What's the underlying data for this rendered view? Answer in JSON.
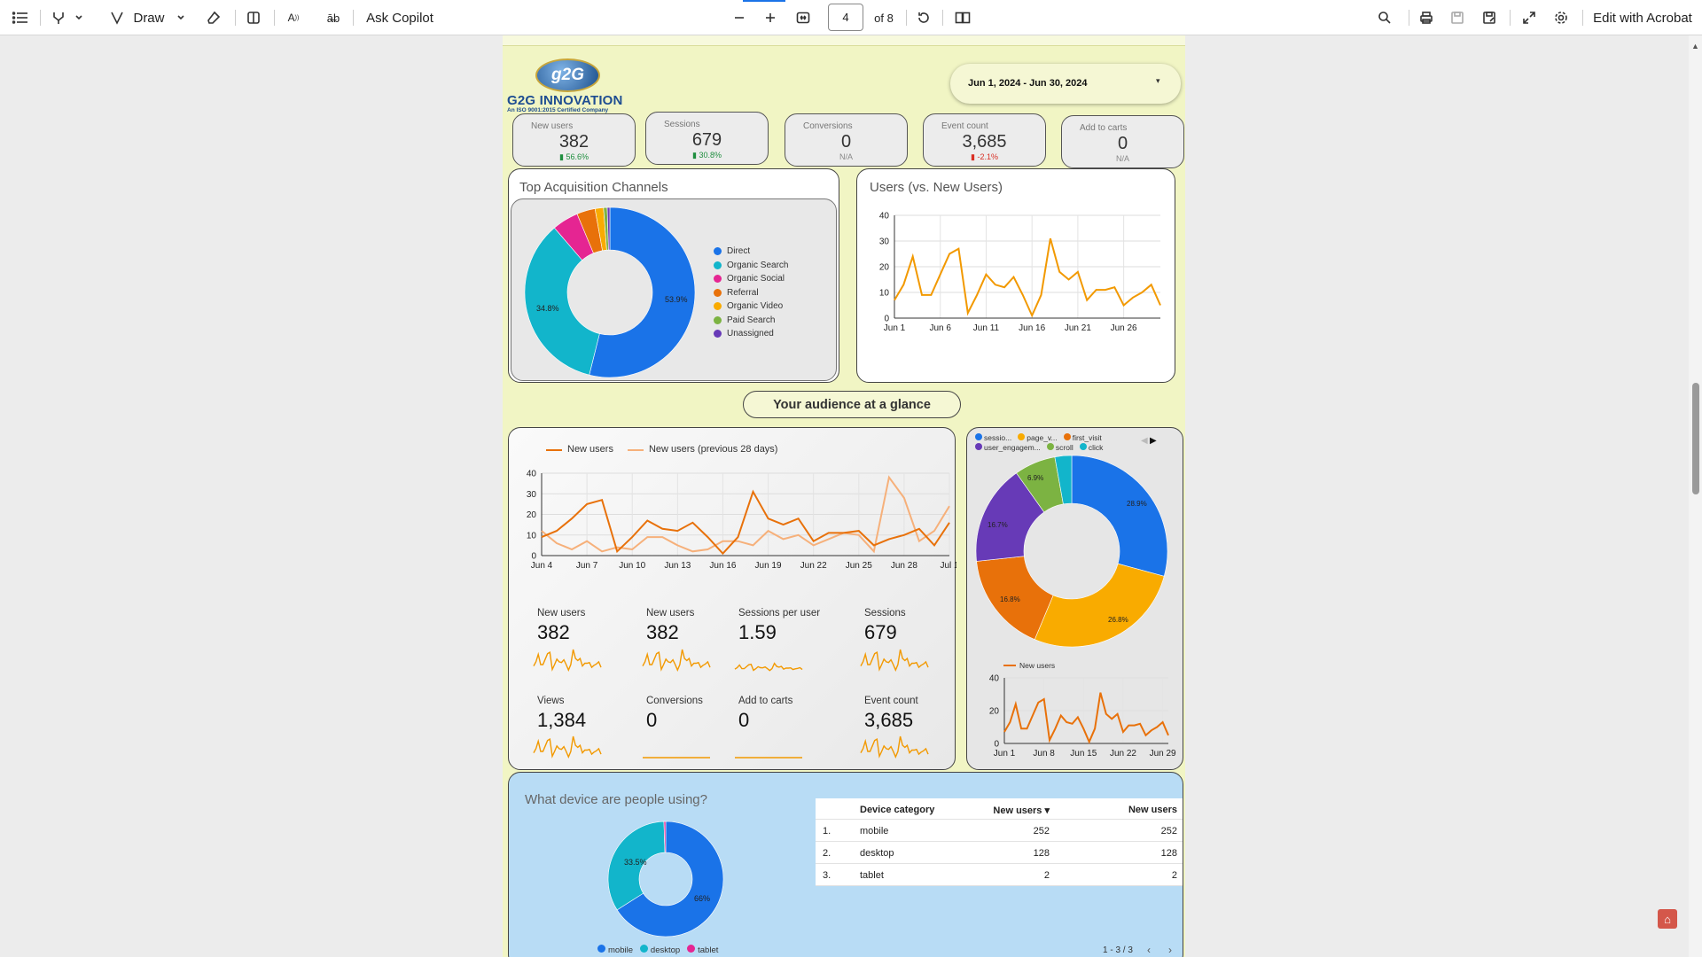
{
  "toolbar": {
    "draw_label": "Draw",
    "ask_copilot": "Ask Copilot",
    "page_number": "4",
    "page_of": "of 8",
    "edit_acrobat": "Edit with Acrobat"
  },
  "report": {
    "logo_text": "g2G",
    "company_name": "G2G INNOVATION",
    "company_tagline": "An ISO 9001:2015 Certified Company",
    "date_range": "Jun 1, 2024 - Jun 30, 2024",
    "kpis": [
      {
        "label": "New users",
        "value": "382",
        "delta": "56.6%"
      },
      {
        "label": "Sessions",
        "value": "679",
        "delta": "30.8%"
      },
      {
        "label": "Conversions",
        "value": "0",
        "delta": "N/A"
      },
      {
        "label": "Event count",
        "value": "3,685",
        "delta": "-2.1%"
      },
      {
        "label": "Add to carts",
        "value": "0",
        "delta": "N/A"
      }
    ],
    "acquisition_title": "Top Acquisition Channels",
    "acquisition_legend": [
      "Direct",
      "Organic Search",
      "Organic Social",
      "Referral",
      "Organic Video",
      "Paid Search",
      "Unassigned"
    ],
    "acquisition_slice_labels": [
      "53.9%",
      "34.8%"
    ],
    "users_title": "Users (vs. New Users)",
    "audience_title": "Your audience at a glance",
    "newusers_legend": [
      "New users",
      "New users (previous 28 days)"
    ],
    "metrics": [
      {
        "label": "New users",
        "value": "382"
      },
      {
        "label": "New users",
        "value": "382"
      },
      {
        "label": "Sessions per user",
        "value": "1.59"
      },
      {
        "label": "Sessions",
        "value": "679"
      },
      {
        "label": "Views",
        "value": "1,384"
      },
      {
        "label": "Conversions",
        "value": "0"
      },
      {
        "label": "Add to carts",
        "value": "0"
      },
      {
        "label": "Event count",
        "value": "3,685"
      }
    ],
    "events_legend": [
      "sessio...",
      "page_v...",
      "first_visit",
      "user_engagem...",
      "scroll",
      "click"
    ],
    "events_slice_labels": [
      "28.9%",
      "26.8%",
      "16.8%",
      "16.7%",
      "6.9%"
    ],
    "small_chart_legend": "New users",
    "device_title": "What device are people using?",
    "device_slice_labels": [
      "33.5%",
      "66%"
    ],
    "device_legend": [
      "mobile",
      "desktop",
      "tablet"
    ],
    "device_table": {
      "headers": [
        "Device category",
        "New users ▾",
        "New users"
      ],
      "rows": [
        {
          "n": "1.",
          "cat": "mobile",
          "a": "252",
          "b": "252"
        },
        {
          "n": "2.",
          "cat": "desktop",
          "a": "128",
          "b": "128"
        },
        {
          "n": "3.",
          "cat": "tablet",
          "a": "2",
          "b": "2"
        }
      ],
      "pagination": "1 - 3 / 3"
    }
  },
  "colors": {
    "direct": "#1a73e8",
    "organic_search": "#12b5cb",
    "organic_social": "#e52592",
    "referral": "#e8710a",
    "organic_video": "#f9ab00",
    "paid_search": "#7cb342",
    "unassigned": "#673ab7",
    "line_orange": "#f29900",
    "line_dark_orange": "#e8710a",
    "line_light": "#f6b07a"
  },
  "chart_data": [
    {
      "type": "pie",
      "title": "Top Acquisition Channels",
      "labels": [
        "Direct",
        "Organic Search",
        "Organic Social",
        "Referral",
        "Organic Video",
        "Paid Search",
        "Unassigned"
      ],
      "values": [
        53.9,
        34.8,
        5.0,
        3.5,
        1.6,
        0.7,
        0.5
      ]
    },
    {
      "type": "line",
      "title": "Users (vs. New Users)",
      "x_ticks": [
        "Jun 1",
        "Jun 6",
        "Jun 11",
        "Jun 16",
        "Jun 21",
        "Jun 26"
      ],
      "y_ticks": [
        "0",
        "10",
        "20",
        "30",
        "40"
      ],
      "ylim": [
        0,
        40
      ],
      "series": [
        {
          "values": [
            7,
            13,
            24,
            9,
            9,
            17,
            25,
            27,
            2,
            9,
            17,
            13,
            12,
            16,
            9,
            1,
            9,
            31,
            18,
            15,
            18,
            7,
            11,
            11,
            12,
            5,
            8,
            10,
            13,
            5
          ]
        }
      ]
    },
    {
      "type": "line",
      "x_ticks": [
        "Jun 4",
        "Jun 7",
        "Jun 10",
        "Jun 13",
        "Jun 16",
        "Jun 19",
        "Jun 22",
        "Jun 25",
        "Jun 28",
        "Jul 1"
      ],
      "y_ticks": [
        "0",
        "10",
        "20",
        "30",
        "40"
      ],
      "ylim": [
        0,
        40
      ],
      "series": [
        {
          "name": "New users",
          "values": [
            9,
            12,
            18,
            25,
            27,
            2,
            9,
            17,
            13,
            12,
            16,
            9,
            1,
            9,
            31,
            18,
            15,
            18,
            7,
            11,
            11,
            12,
            5,
            8,
            10,
            13,
            5,
            16
          ]
        },
        {
          "name": "New users (previous 28 days)",
          "values": [
            12,
            6,
            3,
            7,
            2,
            4,
            3,
            9,
            9,
            5,
            2,
            3,
            7,
            7,
            5,
            12,
            8,
            10,
            5,
            8,
            11,
            10,
            2,
            38,
            28,
            7,
            12,
            24
          ]
        }
      ]
    },
    {
      "type": "pie",
      "labels": [
        "sessio...",
        "page_v...",
        "first_visit",
        "user_engagem...",
        "scroll",
        "click"
      ],
      "values": [
        28.9,
        26.8,
        16.8,
        16.7,
        6.9,
        2.8
      ]
    },
    {
      "type": "line",
      "x_ticks": [
        "Jun 1",
        "Jun 8",
        "Jun 15",
        "Jun 22",
        "Jun 29"
      ],
      "y_ticks": [
        "0",
        "20",
        "40"
      ],
      "ylim": [
        0,
        40
      ],
      "series": [
        {
          "name": "New users",
          "values": [
            7,
            13,
            24,
            9,
            9,
            17,
            25,
            27,
            2,
            9,
            17,
            13,
            12,
            16,
            9,
            1,
            9,
            31,
            18,
            15,
            18,
            7,
            11,
            11,
            12,
            5,
            8,
            10,
            13,
            5
          ]
        }
      ]
    },
    {
      "type": "pie",
      "title": "What device are people using?",
      "labels": [
        "mobile",
        "desktop",
        "tablet"
      ],
      "values": [
        66,
        33.5,
        0.5
      ]
    }
  ]
}
